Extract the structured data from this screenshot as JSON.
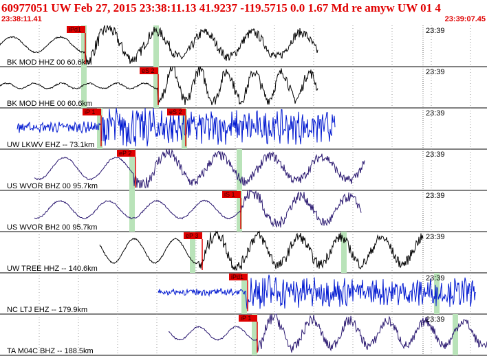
{
  "header": {
    "title": "60977051 UW Feb 27, 2015 23:38:11.13   41.9237 -119.5715  0.0 1.67 Md re amyw UW 01   4",
    "start_time": "23:38:11.41",
    "end_time": "23:39:07.45"
  },
  "panels": [
    {
      "station": "BK MOD HHZ 00 60.6km",
      "time_label": "23:39",
      "picks": [
        {
          "label": "iPd1"
        }
      ]
    },
    {
      "station": "BK MOD HHE 00 60.6km",
      "time_label": "23:39",
      "picks": [
        {
          "label": "eS 2"
        }
      ]
    },
    {
      "station": "UW LKWV EHZ -- 73.1km",
      "time_label": "23:39",
      "picks": [
        {
          "label": "iP 1"
        },
        {
          "label": "eS 2"
        }
      ]
    },
    {
      "station": "US WVOR BHZ 00 95.7km",
      "time_label": "23:39",
      "picks": [
        {
          "label": "eP 2"
        }
      ]
    },
    {
      "station": "US WVOR BH2 00 95.7km",
      "time_label": "23:39",
      "picks": [
        {
          "label": "iS 1"
        }
      ]
    },
    {
      "station": "UW TREE HHZ -- 140.6km",
      "time_label": "23:39",
      "picks": [
        {
          "label": "eP 3"
        }
      ]
    },
    {
      "station": "NC LTJ EHZ -- 179.9km",
      "time_label": "23:39",
      "picks": [
        {
          "label": "iPd1"
        }
      ]
    },
    {
      "station": "TA M04C BHZ -- 188.5km",
      "time_label": "23:39",
      "picks": [
        {
          "label": "iP 1"
        }
      ]
    }
  ]
}
